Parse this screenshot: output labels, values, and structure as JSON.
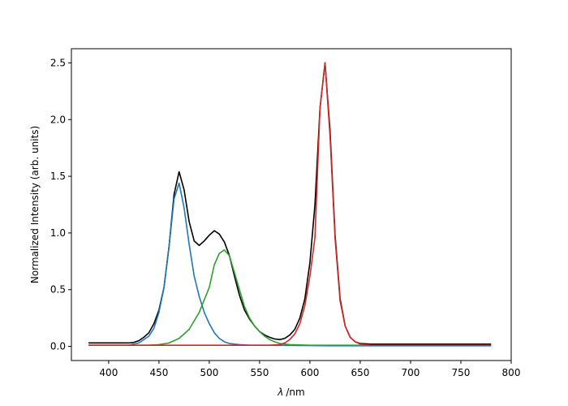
{
  "chart_data": {
    "type": "line",
    "title": "",
    "xlabel": "λ /nm",
    "xlabel_symbol": "λ",
    "xlabel_unit": "/nm",
    "ylabel": "Normalized Intensity (arb. units)",
    "xlim": [
      363,
      800
    ],
    "ylim": [
      -0.125,
      2.625
    ],
    "xticks": [
      400,
      450,
      500,
      550,
      600,
      650,
      700,
      750,
      800
    ],
    "yticks": [
      0.0,
      0.5,
      1.0,
      1.5,
      2.0,
      2.5
    ],
    "xtick_labels": [
      "400",
      "450",
      "500",
      "550",
      "600",
      "650",
      "700",
      "750",
      "800"
    ],
    "ytick_labels": [
      "0.0",
      "0.5",
      "1.0",
      "1.5",
      "2.0",
      "2.5"
    ],
    "grid": false,
    "legend": "none",
    "series": [
      {
        "color": "#000000",
        "points": [
          [
            380,
            0.03
          ],
          [
            400,
            0.03
          ],
          [
            420,
            0.03
          ],
          [
            425,
            0.035
          ],
          [
            430,
            0.05
          ],
          [
            435,
            0.08
          ],
          [
            440,
            0.12
          ],
          [
            445,
            0.2
          ],
          [
            450,
            0.32
          ],
          [
            455,
            0.52
          ],
          [
            460,
            0.88
          ],
          [
            465,
            1.34
          ],
          [
            470,
            1.54
          ],
          [
            475,
            1.38
          ],
          [
            480,
            1.1
          ],
          [
            485,
            0.93
          ],
          [
            490,
            0.89
          ],
          [
            495,
            0.93
          ],
          [
            500,
            0.98
          ],
          [
            505,
            1.02
          ],
          [
            510,
            0.99
          ],
          [
            515,
            0.92
          ],
          [
            520,
            0.8
          ],
          [
            525,
            0.62
          ],
          [
            530,
            0.45
          ],
          [
            535,
            0.32
          ],
          [
            540,
            0.24
          ],
          [
            545,
            0.18
          ],
          [
            550,
            0.13
          ],
          [
            555,
            0.1
          ],
          [
            560,
            0.08
          ],
          [
            565,
            0.065
          ],
          [
            570,
            0.06
          ],
          [
            575,
            0.07
          ],
          [
            580,
            0.1
          ],
          [
            585,
            0.15
          ],
          [
            590,
            0.25
          ],
          [
            595,
            0.42
          ],
          [
            600,
            0.74
          ],
          [
            605,
            1.25
          ],
          [
            610,
            2.1
          ],
          [
            615,
            2.5
          ],
          [
            620,
            1.9
          ],
          [
            625,
            0.98
          ],
          [
            630,
            0.42
          ],
          [
            635,
            0.18
          ],
          [
            640,
            0.08
          ],
          [
            645,
            0.04
          ],
          [
            650,
            0.025
          ],
          [
            660,
            0.02
          ],
          [
            700,
            0.02
          ],
          [
            780,
            0.02
          ]
        ]
      },
      {
        "color": "#1f77b4",
        "points": [
          [
            380,
            0.01
          ],
          [
            420,
            0.01
          ],
          [
            430,
            0.03
          ],
          [
            440,
            0.09
          ],
          [
            445,
            0.16
          ],
          [
            450,
            0.3
          ],
          [
            455,
            0.52
          ],
          [
            460,
            0.88
          ],
          [
            465,
            1.3
          ],
          [
            470,
            1.44
          ],
          [
            475,
            1.22
          ],
          [
            480,
            0.9
          ],
          [
            485,
            0.62
          ],
          [
            490,
            0.44
          ],
          [
            495,
            0.3
          ],
          [
            500,
            0.2
          ],
          [
            505,
            0.12
          ],
          [
            510,
            0.07
          ],
          [
            515,
            0.04
          ],
          [
            520,
            0.025
          ],
          [
            530,
            0.015
          ],
          [
            540,
            0.01
          ],
          [
            560,
            0.01
          ],
          [
            620,
            0.005
          ],
          [
            700,
            0.005
          ],
          [
            780,
            0.005
          ]
        ]
      },
      {
        "color": "#2ca02c",
        "points": [
          [
            380,
            0.01
          ],
          [
            440,
            0.01
          ],
          [
            450,
            0.015
          ],
          [
            460,
            0.03
          ],
          [
            470,
            0.07
          ],
          [
            480,
            0.15
          ],
          [
            490,
            0.3
          ],
          [
            500,
            0.52
          ],
          [
            505,
            0.72
          ],
          [
            510,
            0.82
          ],
          [
            515,
            0.85
          ],
          [
            520,
            0.8
          ],
          [
            525,
            0.65
          ],
          [
            530,
            0.5
          ],
          [
            535,
            0.35
          ],
          [
            540,
            0.25
          ],
          [
            545,
            0.18
          ],
          [
            550,
            0.13
          ],
          [
            555,
            0.09
          ],
          [
            560,
            0.06
          ],
          [
            565,
            0.04
          ],
          [
            570,
            0.025
          ],
          [
            580,
            0.015
          ],
          [
            600,
            0.01
          ],
          [
            700,
            0.01
          ],
          [
            780,
            0.01
          ]
        ]
      },
      {
        "color": "#d62728",
        "points": [
          [
            380,
            0.01
          ],
          [
            560,
            0.01
          ],
          [
            570,
            0.015
          ],
          [
            575,
            0.03
          ],
          [
            580,
            0.06
          ],
          [
            585,
            0.11
          ],
          [
            590,
            0.2
          ],
          [
            595,
            0.36
          ],
          [
            600,
            0.62
          ],
          [
            605,
            0.96
          ],
          [
            610,
            2.1
          ],
          [
            615,
            2.5
          ],
          [
            620,
            1.85
          ],
          [
            625,
            0.95
          ],
          [
            630,
            0.4
          ],
          [
            635,
            0.18
          ],
          [
            640,
            0.08
          ],
          [
            645,
            0.04
          ],
          [
            650,
            0.02
          ],
          [
            660,
            0.01
          ],
          [
            700,
            0.01
          ],
          [
            780,
            0.01
          ]
        ]
      }
    ]
  }
}
